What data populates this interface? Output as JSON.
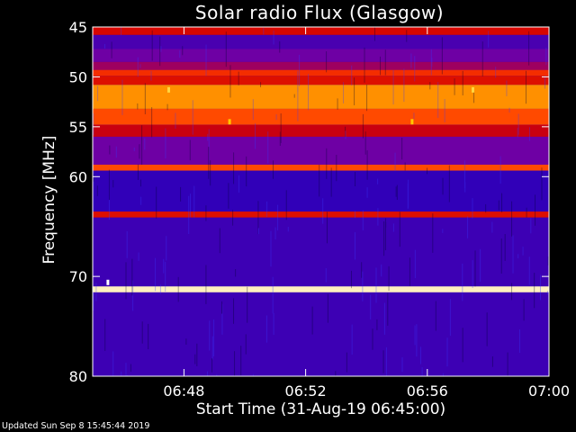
{
  "window": {
    "title": "Solar radio Flux (Glasgow)",
    "footer": "Updated Sun Sep  8 15:45:44 2019"
  },
  "chart_data": {
    "type": "heatmap",
    "title": "Solar radio Flux (Glasgow)",
    "xlabel": "Start Time (31-Aug-19 06:45:00)",
    "ylabel": "Frequency [MHz]",
    "x_range": [
      "06:45:00",
      "07:00:00"
    ],
    "y_range_mhz": [
      45,
      80
    ],
    "y_scale": "linear-inverted",
    "x_ticks": [
      "06:48",
      "06:52",
      "06:56",
      "07:00"
    ],
    "y_ticks": [
      "45",
      "50",
      "55",
      "60",
      "70",
      "80"
    ],
    "colormap": [
      "#0000c8",
      "#7a00a0",
      "#d20000",
      "#ff3c00",
      "#ffc800",
      "#ffffff"
    ],
    "background_color": "#000000",
    "frequency_bands": [
      {
        "from_mhz": 45.0,
        "to_mhz": 45.8,
        "level": 0.42
      },
      {
        "from_mhz": 45.8,
        "to_mhz": 47.2,
        "level": 0.12
      },
      {
        "from_mhz": 47.2,
        "to_mhz": 48.5,
        "level": 0.18
      },
      {
        "from_mhz": 48.5,
        "to_mhz": 49.3,
        "level": 0.28
      },
      {
        "from_mhz": 49.3,
        "to_mhz": 49.9,
        "level": 0.55
      },
      {
        "from_mhz": 49.9,
        "to_mhz": 50.8,
        "level": 0.45
      },
      {
        "from_mhz": 50.8,
        "to_mhz": 53.2,
        "level": 0.72
      },
      {
        "from_mhz": 53.2,
        "to_mhz": 54.8,
        "level": 0.62
      },
      {
        "from_mhz": 54.8,
        "to_mhz": 56.0,
        "level": 0.38
      },
      {
        "from_mhz": 56.0,
        "to_mhz": 58.8,
        "level": 0.18
      },
      {
        "from_mhz": 58.8,
        "to_mhz": 59.4,
        "level": 0.62
      },
      {
        "from_mhz": 59.4,
        "to_mhz": 63.5,
        "level": 0.08
      },
      {
        "from_mhz": 63.5,
        "to_mhz": 64.1,
        "level": 0.45
      },
      {
        "from_mhz": 64.1,
        "to_mhz": 71.0,
        "level": 0.1
      },
      {
        "from_mhz": 71.0,
        "to_mhz": 71.6,
        "level": 0.95
      },
      {
        "from_mhz": 71.6,
        "to_mhz": 80.0,
        "level": 0.1
      }
    ],
    "bright_features": [
      {
        "time": "06:45:30",
        "mhz": 70.6,
        "level": 1.0
      },
      {
        "time": "06:47:30",
        "mhz": 51.3,
        "level": 0.85
      },
      {
        "time": "06:57:30",
        "mhz": 51.3,
        "level": 0.85
      },
      {
        "time": "06:49:30",
        "mhz": 54.5,
        "level": 0.8
      },
      {
        "time": "06:55:30",
        "mhz": 54.5,
        "level": 0.8
      }
    ]
  }
}
